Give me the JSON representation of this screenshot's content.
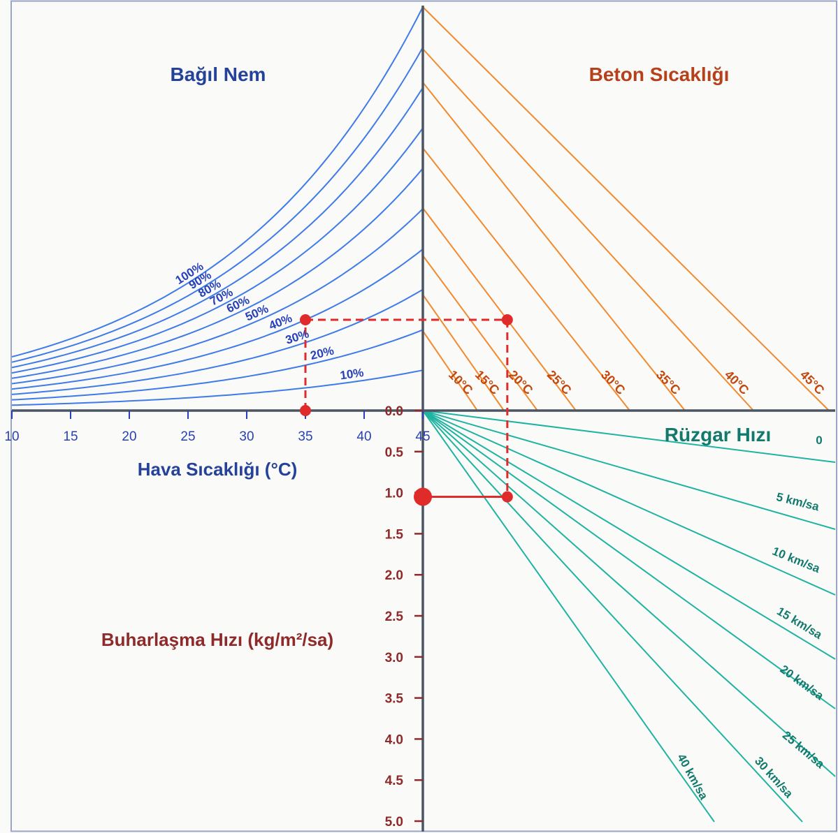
{
  "chart_data": {
    "type": "line",
    "nomograph": true,
    "colors": {
      "humidity": "#3f7be8",
      "humidity_text": "#2741b8",
      "humidity_title": "#24429a",
      "concrete": "#f28a2e",
      "concrete_text": "#c2480e",
      "concrete_title": "#b5401a",
      "wind": "#1fb3a2",
      "wind_text": "#127a6c",
      "evap_text": "#8f2a2a",
      "example": "#e02b2b",
      "axis": "#4b5563",
      "background": "#fafaf8",
      "frame": "#9aa6c6"
    },
    "quadrants": {
      "humidity": {
        "title": "Bağıl Nem",
        "xlabel": "Hava Sıcaklığı (°C)",
        "x_ticks": [
          "10",
          "15",
          "20",
          "25",
          "30",
          "35",
          "40",
          "45"
        ],
        "x_range": [
          10,
          45
        ],
        "curves": [
          {
            "label": "100%",
            "rh": 100
          },
          {
            "label": "90%",
            "rh": 90
          },
          {
            "label": "80%",
            "rh": 80
          },
          {
            "label": "70%",
            "rh": 70
          },
          {
            "label": "60%",
            "rh": 60
          },
          {
            "label": "50%",
            "rh": 50
          },
          {
            "label": "40%",
            "rh": 40
          },
          {
            "label": "30%",
            "rh": 30
          },
          {
            "label": "20%",
            "rh": 20
          },
          {
            "label": "10%",
            "rh": 10
          }
        ]
      },
      "concrete": {
        "title": "Beton Sıcaklığı",
        "lines": [
          {
            "label": "10°C",
            "temp": 10
          },
          {
            "label": "15°C",
            "temp": 15
          },
          {
            "label": "20°C",
            "temp": 20
          },
          {
            "label": "25°C",
            "temp": 25
          },
          {
            "label": "30°C",
            "temp": 30
          },
          {
            "label": "35°C",
            "temp": 35
          },
          {
            "label": "40°C",
            "temp": 40
          },
          {
            "label": "45°C",
            "temp": 45
          }
        ]
      },
      "wind": {
        "title": "Rüzgar Hızı",
        "lines": [
          {
            "label": "0",
            "speed": 0
          },
          {
            "label": "5 km/sa",
            "speed": 5
          },
          {
            "label": "10 km/sa",
            "speed": 10
          },
          {
            "label": "15 km/sa",
            "speed": 15
          },
          {
            "label": "20 km/sa",
            "speed": 20
          },
          {
            "label": "25 km/sa",
            "speed": 25
          },
          {
            "label": "30 km/sa",
            "speed": 30
          },
          {
            "label": "40 km/sa",
            "speed": 40
          }
        ]
      },
      "evaporation": {
        "ylabel": "Buharlaşma Hızı (kg/m²/sa)",
        "y_ticks": [
          "0.0",
          "0.5",
          "1.0",
          "1.5",
          "2.0",
          "2.5",
          "3.0",
          "3.5",
          "4.0",
          "4.5",
          "5.0"
        ],
        "y_range": [
          0,
          5
        ]
      }
    },
    "example": {
      "air_temp": 35,
      "relative_humidity": 40,
      "concrete_temp": 25,
      "wind_speed": 20,
      "evaporation_rate": 1.05
    }
  }
}
